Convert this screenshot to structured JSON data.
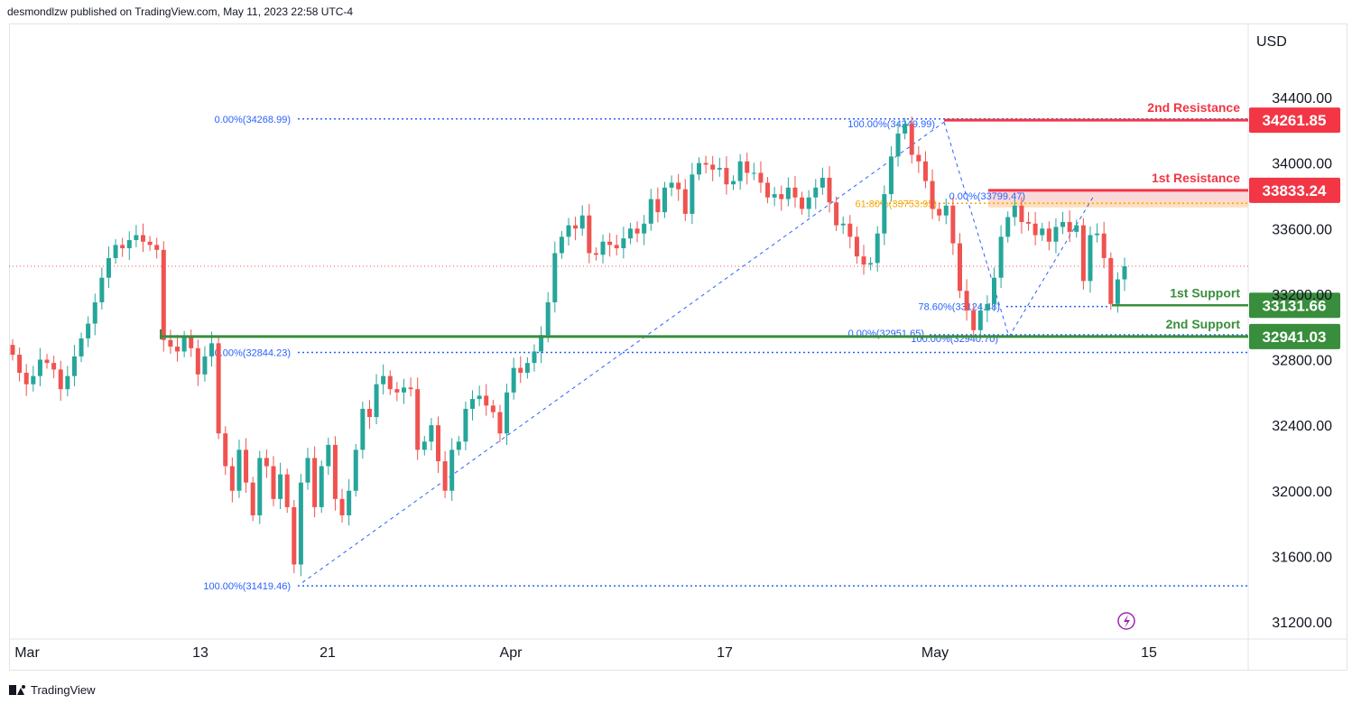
{
  "header": {
    "publisher_text": "desmondlzw published on TradingView.com, May 11, 2023 22:58 UTC-4"
  },
  "footer": {
    "brand": "TradingView"
  },
  "colors": {
    "up": "#26a69a",
    "up_body": "#4caf50",
    "down": "#ef5350",
    "resistance": "#f23645",
    "support": "#388e3c",
    "fib": "#2962ff",
    "fib_orange": "#f7a600",
    "grid": "#e0e3eb",
    "text": "#131722",
    "resistance_zone": "#f9cfd2",
    "orange_zone": "#ffe0b2"
  },
  "chart_data": {
    "type": "candlestick",
    "currency": "USD",
    "y_ticks": [
      "34400.00",
      "34000.00",
      "33600.00",
      "33200.00",
      "32800.00",
      "32400.00",
      "32000.00",
      "31600.00",
      "31200.00"
    ],
    "x_ticks": [
      "Mar",
      "13",
      "21",
      "Apr",
      "17",
      "May",
      "15"
    ],
    "last_price": 33370,
    "levels": [
      {
        "label": "2nd Resistance",
        "value": "34261.85",
        "kind": "resistance"
      },
      {
        "label": "1st Resistance",
        "value": "33833.24",
        "kind": "resistance"
      },
      {
        "label": "1st Support",
        "value": "33131.66",
        "kind": "support"
      },
      {
        "label": "2nd Support",
        "value": "32941.03",
        "kind": "support"
      }
    ],
    "fib_labels": [
      "0.00%(34268.99)",
      "50.00%(32844.23)",
      "100.00%(31419.46)",
      "100.00%(34249.99)",
      "0.00%(33799.47)",
      "61.80%(33753.95)",
      "78.60%(33124.48)",
      "0.00%(32951.65)",
      "100.00%(32940.70)"
    ],
    "closes": [
      32830,
      32720,
      32650,
      32700,
      32800,
      32780,
      32740,
      32620,
      32700,
      32820,
      32930,
      33020,
      33150,
      33300,
      33420,
      33500,
      33480,
      33530,
      33560,
      33520,
      33500,
      33470,
      32920,
      32880,
      32850,
      32940,
      32870,
      32710,
      32820,
      32900,
      32350,
      32150,
      32000,
      32250,
      32050,
      31850,
      32200,
      32150,
      31950,
      32100,
      31900,
      31550,
      32050,
      32200,
      31900,
      32150,
      32280,
      31950,
      31850,
      32000,
      32250,
      32500,
      32450,
      32650,
      32700,
      32620,
      32600,
      32630,
      32620,
      32250,
      32300,
      32400,
      32180,
      32000,
      32250,
      32300,
      32500,
      32560,
      32580,
      32520,
      32480,
      32350,
      32600,
      32750,
      32720,
      32780,
      32850,
      32950,
      33150,
      33450,
      33550,
      33620,
      33600,
      33680,
      33450,
      33440,
      33520,
      33500,
      33480,
      33540,
      33600,
      33570,
      33630,
      33780,
      33700,
      33850,
      33880,
      33840,
      33690,
      33930,
      34000,
      33990,
      33960,
      33970,
      33870,
      33890,
      34010,
      33940,
      33940,
      33880,
      33790,
      33810,
      33780,
      33850,
      33790,
      33720,
      33790,
      33850,
      33910,
      33760,
      33620,
      33630,
      33550,
      33430,
      33380,
      33390,
      33570,
      33810,
      34040,
      34180,
      34240,
      34050,
      34010,
      33890,
      33720,
      33680,
      33740,
      33510,
      33220,
      33100,
      32980,
      33100,
      33140,
      33300,
      33550,
      33670,
      33740,
      33640,
      33630,
      33560,
      33600,
      33520,
      33610,
      33640,
      33580,
      33620,
      33280,
      33560,
      33570,
      33420,
      33140,
      33290,
      33370
    ]
  }
}
